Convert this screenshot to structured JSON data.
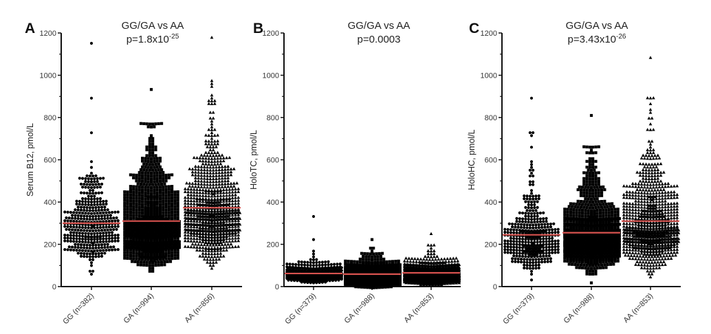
{
  "chart_data": [
    {
      "type": "scatter",
      "subtype": "dot-plot (column scatter) with mean line",
      "panel_letter": "A",
      "title": "GG/GA vs AA",
      "p_value": {
        "prefix": "p=1.8x10",
        "exponent": "-25"
      },
      "ylabel": "Serum B12, pmol/L",
      "xlabel": "",
      "ylim": [
        0,
        1200
      ],
      "yticks": [
        0,
        200,
        400,
        600,
        800,
        1000,
        1200
      ],
      "grid": false,
      "categories": [
        "GG (n=382)",
        "GA (n=994)",
        "AA (n=856)"
      ],
      "series": [
        {
          "name": "GG",
          "n": 382,
          "marker": "circle",
          "mean": 300,
          "min": 60,
          "max": 1150
        },
        {
          "name": "GA",
          "n": 994,
          "marker": "square",
          "mean": 310,
          "min": 75,
          "max": 935
        },
        {
          "name": "AA",
          "n": 856,
          "marker": "triangle",
          "mean": 373,
          "min": 85,
          "max": 1180
        }
      ],
      "mean_line_color": "#d9534f"
    },
    {
      "type": "scatter",
      "subtype": "dot-plot (column scatter) with mean line",
      "panel_letter": "B",
      "title": "GG/GA vs AA",
      "p_value": {
        "prefix": "p=0.0003",
        "exponent": ""
      },
      "ylabel": "HoloTC, pmol/L",
      "xlabel": "",
      "ylim": [
        0,
        1200
      ],
      "yticks": [
        0,
        200,
        400,
        600,
        800,
        1000,
        1200
      ],
      "grid": false,
      "categories": [
        "GG (n=379)",
        "GA (n=988)",
        "AA (n=853)"
      ],
      "series": [
        {
          "name": "GG",
          "n": 379,
          "marker": "circle",
          "mean": 62,
          "min": 15,
          "max": 325
        },
        {
          "name": "GA",
          "n": 988,
          "marker": "square",
          "mean": 59,
          "min": 10,
          "max": 225
        },
        {
          "name": "AA",
          "n": 853,
          "marker": "triangle",
          "mean": 65,
          "min": 12,
          "max": 245
        }
      ],
      "mean_line_color": "#d9534f"
    },
    {
      "type": "scatter",
      "subtype": "dot-plot (column scatter) with mean line",
      "panel_letter": "C",
      "title": "GG/GA vs AA",
      "p_value": {
        "prefix": "p=3.43x10",
        "exponent": "-26"
      },
      "ylabel": "HoloHC, pmol/L",
      "xlabel": "",
      "ylim": [
        0,
        1200
      ],
      "yticks": [
        0,
        200,
        400,
        600,
        800,
        1000,
        1200
      ],
      "grid": false,
      "categories": [
        "GG (n=379)",
        "GA (n=988)",
        "AA (n=853)"
      ],
      "series": [
        {
          "name": "GG",
          "n": 379,
          "marker": "circle",
          "mean": 245,
          "min": 35,
          "max": 895
        },
        {
          "name": "GA",
          "n": 988,
          "marker": "square",
          "mean": 255,
          "min": 20,
          "max": 815
        },
        {
          "name": "AA",
          "n": 853,
          "marker": "triangle",
          "mean": 310,
          "min": 40,
          "max": 1085
        }
      ],
      "mean_line_color": "#d9534f"
    }
  ]
}
